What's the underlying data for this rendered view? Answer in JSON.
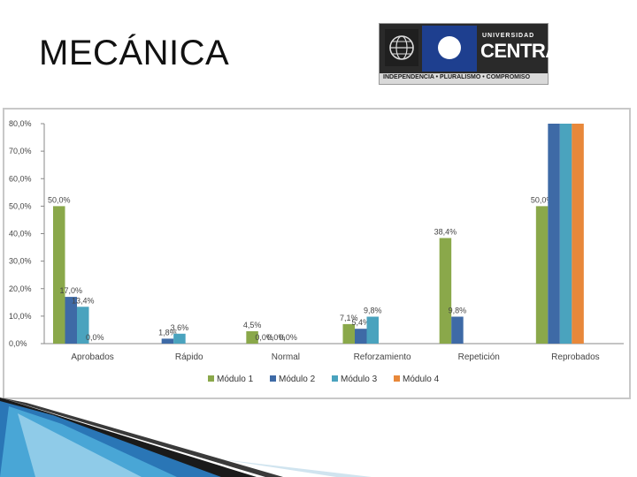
{
  "slide": {
    "title": "MECÁNICA"
  },
  "logo": {
    "line1": "UNIVERSIDAD",
    "line2": "CENTRAL",
    "motto": "INDEPENDENCIA • PLURALISMO • COMPROMISO",
    "globe_icon": "globe-icon"
  },
  "colors": {
    "modulo1": "#8aa84a",
    "modulo2": "#3e6aa6",
    "modulo3": "#4aa3be",
    "modulo4": "#e8883a"
  },
  "chart_data": {
    "type": "bar",
    "categories": [
      "Aprobados",
      "Rápido",
      "Normal",
      "Reforzamiento",
      "Repetición",
      "Reprobados"
    ],
    "series": [
      {
        "name": "Módulo 1",
        "values": [
          50.0,
          null,
          4.5,
          7.1,
          38.4,
          50.0
        ],
        "labels": [
          "50,0%",
          "",
          "4,5%",
          "7,1%",
          "38,4%",
          "50,0%"
        ]
      },
      {
        "name": "Módulo 2",
        "values": [
          17.0,
          1.8,
          0.0,
          5.4,
          9.8,
          80.0
        ],
        "labels": [
          "17,0%",
          "1,8%",
          "0,0%",
          "5,4%",
          "9,8%",
          ""
        ]
      },
      {
        "name": "Módulo 3",
        "values": [
          13.4,
          3.6,
          0.0,
          9.8,
          null,
          80.0
        ],
        "labels": [
          "13,4%",
          "3,6%",
          "0,0%",
          "9,8%",
          "",
          ""
        ]
      },
      {
        "name": "Módulo 4",
        "values": [
          0.0,
          null,
          0.0,
          null,
          null,
          80.0
        ],
        "labels": [
          "0,0%",
          "",
          "0,0%",
          "",
          "",
          ""
        ]
      }
    ],
    "yticks": [
      "0,0%",
      "10,0%",
      "20,0%",
      "30,0%",
      "40,0%",
      "50,0%",
      "60,0%",
      "70,0%",
      "80,0%"
    ],
    "ylim": [
      0,
      80
    ],
    "legend": "bottom",
    "grid": false
  }
}
